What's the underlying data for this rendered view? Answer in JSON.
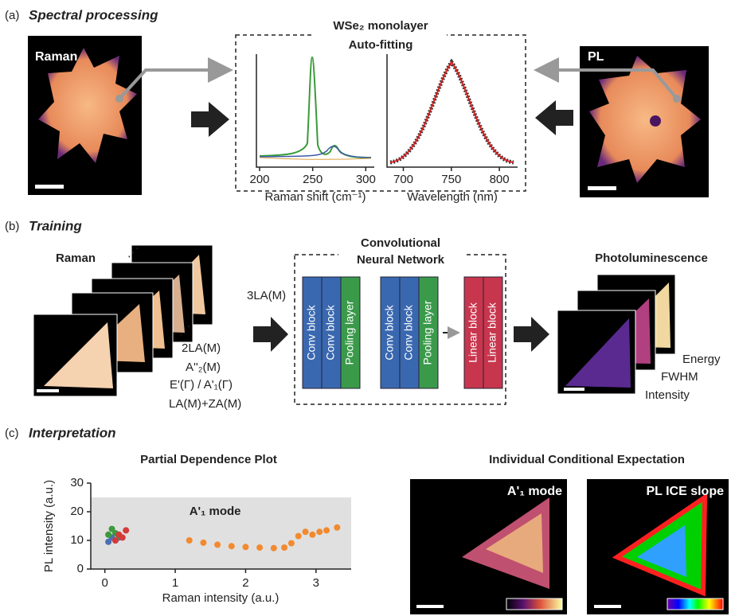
{
  "panel_a": {
    "label": "(a)",
    "title": "Spectral processing",
    "raman_label": "Raman",
    "pl_label": "PL",
    "box_title": "WSe₂ monolayer",
    "box_subtitle": "Auto-fitting",
    "raman_spectrum": {
      "xlim": [
        197,
        308
      ],
      "xticks": [
        200,
        250,
        300
      ],
      "xlabel": "Raman shift (cm⁻¹)"
    },
    "pl_spectrum": {
      "xlim": [
        683,
        819
      ],
      "xticks": [
        700,
        750,
        800
      ],
      "xlabel": "Wavelength (nm)"
    }
  },
  "panel_b": {
    "label": "(b)",
    "title": "Training",
    "raman_label": "Raman",
    "raman_modes": [
      "3LA(M)",
      "2LA(M)",
      "A''₂(M)",
      "E'(Γ) / A'₁(Γ)",
      "LA(M)+ZA(M)"
    ],
    "cnn_title": [
      "Convolutional",
      "Neural Network"
    ],
    "blocks": [
      "Conv block",
      "Conv block",
      "Pooling layer",
      "Conv block",
      "Conv block",
      "Pooling layer",
      "Linear block",
      "Linear block"
    ],
    "output_title": "Photoluminescence",
    "outputs": [
      "Energy",
      "FWHM",
      "Intensity"
    ]
  },
  "panel_c": {
    "label": "(c)",
    "title": "Interpretation",
    "pdp": {
      "type": "scatter",
      "title": "Partial Dependence Plot",
      "xlabel": "Raman intensity (a.u.)",
      "ylabel": "PL intensity (a.u.)",
      "xlim": [
        -0.2,
        3.5
      ],
      "ylim": [
        0,
        30
      ],
      "xticks": [
        0,
        1,
        2,
        3
      ],
      "yticks": [
        0,
        10,
        20,
        30
      ],
      "band": [
        0,
        25
      ],
      "band_color": "#e0e0e0",
      "annotation": "A'₁ mode",
      "series": [
        {
          "color": "#f28a2e",
          "x": [
            1.2,
            1.4,
            1.6,
            1.8,
            2.0,
            2.2,
            2.4,
            2.55,
            2.65,
            2.75,
            2.85,
            2.95,
            3.05,
            3.15,
            3.3
          ],
          "values": [
            10,
            9.2,
            8.5,
            8,
            7.7,
            7.5,
            7.3,
            7.5,
            9,
            11.5,
            13,
            12,
            13,
            13.5,
            14.5
          ]
        },
        {
          "color": "#4a6fb5",
          "x": [
            0.05,
            0.1,
            0.15,
            0.2
          ],
          "values": [
            9.5,
            11,
            10,
            11
          ]
        },
        {
          "color": "#3c9a3c",
          "x": [
            0.05,
            0.1,
            0.15,
            0.2
          ],
          "values": [
            12,
            14,
            12.5,
            11.5
          ]
        },
        {
          "color": "#d43a3a",
          "x": [
            0.15,
            0.2,
            0.25,
            0.3
          ],
          "values": [
            10,
            12,
            11,
            13.5
          ]
        }
      ]
    },
    "ice_title": "Individual Conditional Expectation",
    "ice_maps": [
      "A'₁ mode",
      "PL ICE slope"
    ]
  }
}
